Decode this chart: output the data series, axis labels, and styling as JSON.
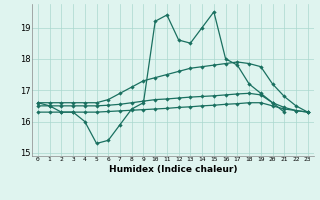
{
  "x": [
    0,
    1,
    2,
    3,
    4,
    5,
    6,
    7,
    8,
    9,
    10,
    11,
    12,
    13,
    14,
    15,
    16,
    17,
    18,
    19,
    20,
    21,
    22,
    23
  ],
  "line_main": [
    16.6,
    16.5,
    16.3,
    16.3,
    16.0,
    15.3,
    15.4,
    15.9,
    16.4,
    16.6,
    19.2,
    19.4,
    18.6,
    18.5,
    19.0,
    19.5,
    18.0,
    17.8,
    17.2,
    16.9,
    16.6,
    16.3,
    null,
    null
  ],
  "line_upper": [
    16.6,
    16.6,
    16.6,
    16.6,
    16.6,
    16.6,
    16.7,
    16.9,
    17.1,
    17.3,
    17.4,
    17.5,
    17.6,
    17.7,
    17.75,
    17.8,
    17.85,
    17.9,
    17.85,
    17.75,
    17.2,
    16.8,
    16.5,
    16.3
  ],
  "line_mid": [
    16.5,
    16.5,
    16.5,
    16.5,
    16.5,
    16.5,
    16.52,
    16.55,
    16.6,
    16.65,
    16.7,
    16.72,
    16.75,
    16.78,
    16.8,
    16.82,
    16.85,
    16.88,
    16.9,
    16.85,
    16.6,
    16.45,
    16.35,
    16.3
  ],
  "line_lower": [
    16.3,
    16.3,
    16.3,
    16.3,
    16.3,
    16.3,
    16.32,
    16.34,
    16.36,
    16.38,
    16.4,
    16.42,
    16.45,
    16.47,
    16.5,
    16.52,
    16.55,
    16.57,
    16.6,
    16.6,
    16.5,
    16.4,
    16.35,
    16.3
  ],
  "color": "#1a7060",
  "bg_color": "#dff4ef",
  "grid_color": "#aad8ce",
  "xlabel": "Humidex (Indice chaleur)",
  "ylim": [
    14.9,
    19.75
  ],
  "yticks": [
    15,
    16,
    17,
    18,
    19
  ],
  "xlim": [
    -0.5,
    23.5
  ]
}
